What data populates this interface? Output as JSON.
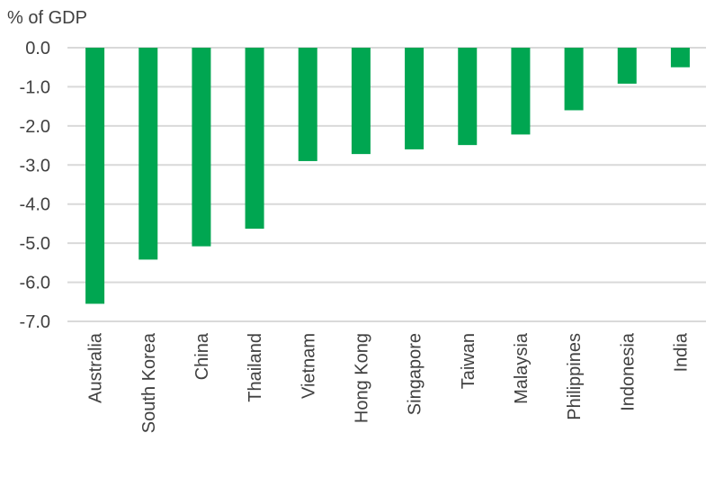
{
  "chart_data": {
    "type": "bar",
    "title": "",
    "xlabel": "",
    "ylabel": "% of GDP",
    "categories": [
      "Australia",
      "South Korea",
      "China",
      "Thailand",
      "Vietnam",
      "Hong Kong",
      "Singapore",
      "Taiwan",
      "Malaysia",
      "Philippines",
      "Indonesia",
      "India"
    ],
    "values": [
      -6.55,
      -5.42,
      -5.08,
      -4.63,
      -2.9,
      -2.72,
      -2.6,
      -2.49,
      -2.22,
      -1.6,
      -0.92,
      -0.5
    ],
    "ylim": [
      -7.0,
      0.0
    ],
    "yticks": [
      "0.0",
      "-1.0",
      "-2.0",
      "-3.0",
      "-4.0",
      "-5.0",
      "-6.0",
      "-7.0"
    ],
    "grid": true,
    "legend": "none",
    "bar_color": "#00a651",
    "grid_color": "#d9d9d9",
    "text_color": "#404040"
  }
}
